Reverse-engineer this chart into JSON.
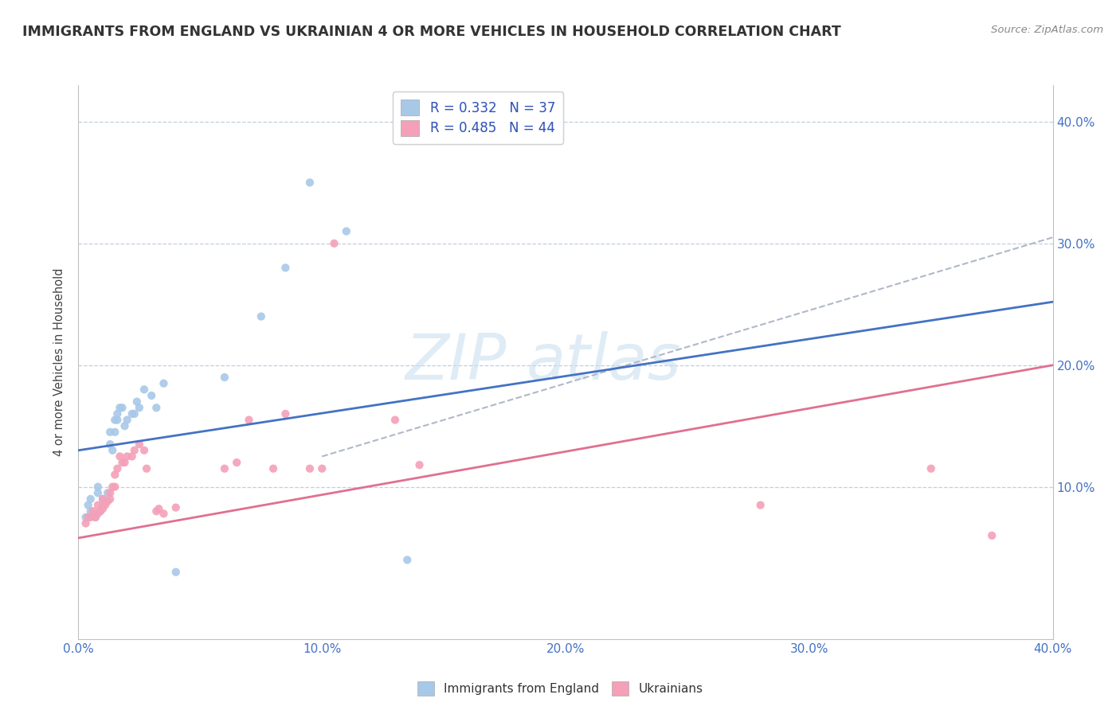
{
  "title": "IMMIGRANTS FROM ENGLAND VS UKRAINIAN 4 OR MORE VEHICLES IN HOUSEHOLD CORRELATION CHART",
  "source": "Source: ZipAtlas.com",
  "ylabel": "4 or more Vehicles in Household",
  "xlim": [
    0.0,
    0.4
  ],
  "ylim": [
    -0.025,
    0.43
  ],
  "xtick_labels": [
    "0.0%",
    "10.0%",
    "20.0%",
    "30.0%",
    "40.0%"
  ],
  "xtick_vals": [
    0.0,
    0.1,
    0.2,
    0.3,
    0.4
  ],
  "ytick_labels": [
    "10.0%",
    "20.0%",
    "30.0%",
    "40.0%"
  ],
  "ytick_vals": [
    0.1,
    0.2,
    0.3,
    0.4
  ],
  "england_R": "0.332",
  "england_N": "37",
  "ukrainian_R": "0.485",
  "ukrainian_N": "44",
  "england_color": "#a8c8e8",
  "ukrainian_color": "#f4a0b8",
  "england_line_color": "#4472c4",
  "ukrainian_line_color": "#e07090",
  "dashed_color": "#b0b8c8",
  "england_line": [
    [
      0.0,
      0.13
    ],
    [
      0.4,
      0.252
    ]
  ],
  "ukrainian_line": [
    [
      0.0,
      0.058
    ],
    [
      0.4,
      0.2
    ]
  ],
  "dashed_line": [
    [
      0.1,
      0.125
    ],
    [
      0.4,
      0.305
    ]
  ],
  "watermark_text": "ZIP atlas",
  "england_scatter": [
    [
      0.003,
      0.075
    ],
    [
      0.004,
      0.085
    ],
    [
      0.005,
      0.08
    ],
    [
      0.005,
      0.09
    ],
    [
      0.007,
      0.075
    ],
    [
      0.008,
      0.095
    ],
    [
      0.008,
      0.1
    ],
    [
      0.009,
      0.08
    ],
    [
      0.01,
      0.085
    ],
    [
      0.01,
      0.09
    ],
    [
      0.012,
      0.095
    ],
    [
      0.013,
      0.135
    ],
    [
      0.013,
      0.145
    ],
    [
      0.014,
      0.13
    ],
    [
      0.015,
      0.155
    ],
    [
      0.015,
      0.145
    ],
    [
      0.016,
      0.155
    ],
    [
      0.016,
      0.16
    ],
    [
      0.017,
      0.165
    ],
    [
      0.018,
      0.165
    ],
    [
      0.019,
      0.15
    ],
    [
      0.02,
      0.155
    ],
    [
      0.022,
      0.16
    ],
    [
      0.023,
      0.16
    ],
    [
      0.024,
      0.17
    ],
    [
      0.025,
      0.165
    ],
    [
      0.027,
      0.18
    ],
    [
      0.03,
      0.175
    ],
    [
      0.032,
      0.165
    ],
    [
      0.035,
      0.185
    ],
    [
      0.04,
      0.03
    ],
    [
      0.06,
      0.19
    ],
    [
      0.075,
      0.24
    ],
    [
      0.085,
      0.28
    ],
    [
      0.095,
      0.35
    ],
    [
      0.11,
      0.31
    ],
    [
      0.135,
      0.04
    ]
  ],
  "ukrainian_scatter": [
    [
      0.003,
      0.07
    ],
    [
      0.004,
      0.075
    ],
    [
      0.005,
      0.075
    ],
    [
      0.006,
      0.08
    ],
    [
      0.007,
      0.075
    ],
    [
      0.008,
      0.078
    ],
    [
      0.008,
      0.085
    ],
    [
      0.009,
      0.08
    ],
    [
      0.01,
      0.082
    ],
    [
      0.01,
      0.09
    ],
    [
      0.011,
      0.085
    ],
    [
      0.012,
      0.088
    ],
    [
      0.013,
      0.09
    ],
    [
      0.013,
      0.095
    ],
    [
      0.014,
      0.1
    ],
    [
      0.015,
      0.1
    ],
    [
      0.015,
      0.11
    ],
    [
      0.016,
      0.115
    ],
    [
      0.017,
      0.125
    ],
    [
      0.018,
      0.12
    ],
    [
      0.019,
      0.12
    ],
    [
      0.02,
      0.125
    ],
    [
      0.022,
      0.125
    ],
    [
      0.023,
      0.13
    ],
    [
      0.025,
      0.135
    ],
    [
      0.027,
      0.13
    ],
    [
      0.028,
      0.115
    ],
    [
      0.032,
      0.08
    ],
    [
      0.033,
      0.082
    ],
    [
      0.035,
      0.078
    ],
    [
      0.04,
      0.083
    ],
    [
      0.06,
      0.115
    ],
    [
      0.065,
      0.12
    ],
    [
      0.07,
      0.155
    ],
    [
      0.08,
      0.115
    ],
    [
      0.085,
      0.16
    ],
    [
      0.095,
      0.115
    ],
    [
      0.1,
      0.115
    ],
    [
      0.105,
      0.3
    ],
    [
      0.13,
      0.155
    ],
    [
      0.14,
      0.118
    ],
    [
      0.28,
      0.085
    ],
    [
      0.35,
      0.115
    ],
    [
      0.375,
      0.06
    ]
  ]
}
